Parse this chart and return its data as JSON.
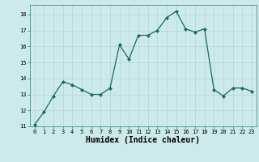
{
  "x": [
    0,
    1,
    2,
    3,
    4,
    5,
    6,
    7,
    8,
    9,
    10,
    11,
    12,
    13,
    14,
    15,
    16,
    17,
    18,
    19,
    20,
    21,
    22,
    23
  ],
  "y": [
    11.1,
    11.9,
    12.9,
    13.8,
    13.6,
    13.3,
    13.0,
    13.0,
    13.4,
    16.1,
    15.2,
    16.7,
    16.7,
    17.0,
    17.8,
    18.2,
    17.1,
    16.9,
    17.1,
    13.3,
    12.9,
    13.4,
    13.4,
    13.2
  ],
  "xlabel": "Humidex (Indice chaleur)",
  "ylim": [
    11,
    18.6
  ],
  "xlim": [
    -0.5,
    23.5
  ],
  "yticks": [
    11,
    12,
    13,
    14,
    15,
    16,
    17,
    18
  ],
  "xticks": [
    0,
    1,
    2,
    3,
    4,
    5,
    6,
    7,
    8,
    9,
    10,
    11,
    12,
    13,
    14,
    15,
    16,
    17,
    18,
    19,
    20,
    21,
    22,
    23
  ],
  "line_color": "#1a6b5a",
  "marker_color": "#1a6b5a",
  "bg_color": "#cceaea",
  "grid_color": "#b8d8d8",
  "fig_bg": "#cceaea",
  "tick_fontsize": 5.0,
  "xlabel_fontsize": 7.0,
  "ylabel_fontsize": 6.0
}
